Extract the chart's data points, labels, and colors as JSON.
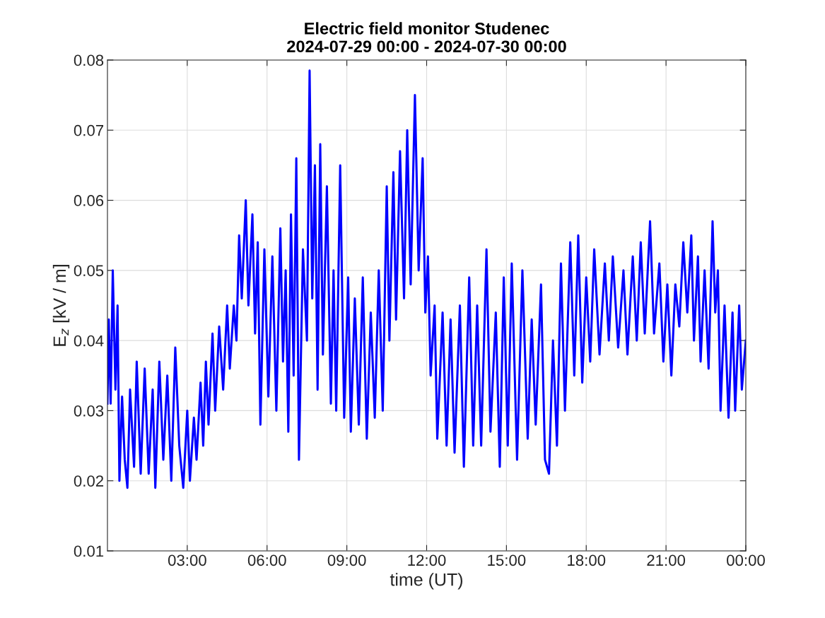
{
  "chart_data": {
    "type": "line",
    "title": "Electric field monitor Studenec\n2024-07-29 00:00 - 2024-07-30 00:00",
    "xlabel": "time (UT)",
    "ylabel": "E$_{z}$ [kV / m]",
    "xlim": [
      0,
      24
    ],
    "xticks": [
      {
        "value": 3,
        "label": "03:00"
      },
      {
        "value": 6,
        "label": "06:00"
      },
      {
        "value": 9,
        "label": "09:00"
      },
      {
        "value": 12,
        "label": "12:00"
      },
      {
        "value": 15,
        "label": "15:00"
      },
      {
        "value": 18,
        "label": "18:00"
      },
      {
        "value": 21,
        "label": "21:00"
      },
      {
        "value": 24,
        "label": "00:00"
      }
    ],
    "ylim": [
      0.01,
      0.08
    ],
    "yticks": [
      0.01,
      0.02,
      0.03,
      0.04,
      0.05,
      0.06,
      0.07,
      0.08
    ],
    "grid": true,
    "legend": false,
    "marker": "none",
    "line_style": "solid",
    "series": [
      {
        "color": "#0000ff",
        "x": [
          0.0,
          0.05,
          0.12,
          0.2,
          0.3,
          0.38,
          0.45,
          0.55,
          0.65,
          0.75,
          0.85,
          1.0,
          1.1,
          1.25,
          1.4,
          1.55,
          1.7,
          1.8,
          1.95,
          2.1,
          2.25,
          2.4,
          2.55,
          2.7,
          2.85,
          3.0,
          3.1,
          3.25,
          3.35,
          3.5,
          3.6,
          3.7,
          3.8,
          3.95,
          4.05,
          4.2,
          4.35,
          4.5,
          4.6,
          4.75,
          4.85,
          4.95,
          5.05,
          5.2,
          5.3,
          5.45,
          5.55,
          5.65,
          5.75,
          5.9,
          6.05,
          6.2,
          6.35,
          6.5,
          6.6,
          6.7,
          6.8,
          6.9,
          7.0,
          7.1,
          7.2,
          7.35,
          7.5,
          7.6,
          7.7,
          7.8,
          7.9,
          8.0,
          8.1,
          8.25,
          8.4,
          8.5,
          8.6,
          8.75,
          8.9,
          9.05,
          9.15,
          9.3,
          9.45,
          9.6,
          9.75,
          9.9,
          10.05,
          10.2,
          10.35,
          10.5,
          10.6,
          10.75,
          10.85,
          11.0,
          11.15,
          11.27,
          11.4,
          11.56,
          11.7,
          11.85,
          11.95,
          12.05,
          12.15,
          12.3,
          12.4,
          12.6,
          12.75,
          12.9,
          13.05,
          13.25,
          13.4,
          13.6,
          13.75,
          13.9,
          14.05,
          14.25,
          14.4,
          14.6,
          14.75,
          14.9,
          15.05,
          15.2,
          15.4,
          15.6,
          15.8,
          15.95,
          16.1,
          16.3,
          16.45,
          16.6,
          16.75,
          16.9,
          17.05,
          17.2,
          17.4,
          17.55,
          17.7,
          17.85,
          18.0,
          18.15,
          18.3,
          18.5,
          18.7,
          18.85,
          19.0,
          19.2,
          19.4,
          19.55,
          19.75,
          19.9,
          20.05,
          20.2,
          20.4,
          20.55,
          20.75,
          20.9,
          21.05,
          21.2,
          21.35,
          21.5,
          21.65,
          21.8,
          21.95,
          22.05,
          22.2,
          22.3,
          22.45,
          22.6,
          22.75,
          22.85,
          22.95,
          23.05,
          23.2,
          23.35,
          23.5,
          23.6,
          23.75,
          23.85,
          24.0
        ],
        "values": [
          0.031,
          0.043,
          0.031,
          0.05,
          0.033,
          0.045,
          0.02,
          0.032,
          0.023,
          0.019,
          0.033,
          0.022,
          0.037,
          0.021,
          0.036,
          0.021,
          0.033,
          0.019,
          0.037,
          0.023,
          0.035,
          0.02,
          0.039,
          0.025,
          0.019,
          0.03,
          0.02,
          0.029,
          0.023,
          0.034,
          0.025,
          0.037,
          0.028,
          0.041,
          0.03,
          0.042,
          0.033,
          0.045,
          0.036,
          0.045,
          0.04,
          0.055,
          0.046,
          0.06,
          0.045,
          0.058,
          0.041,
          0.054,
          0.028,
          0.053,
          0.032,
          0.052,
          0.03,
          0.056,
          0.037,
          0.05,
          0.027,
          0.058,
          0.035,
          0.066,
          0.023,
          0.053,
          0.04,
          0.0785,
          0.046,
          0.065,
          0.033,
          0.068,
          0.038,
          0.062,
          0.031,
          0.05,
          0.03,
          0.065,
          0.029,
          0.049,
          0.027,
          0.046,
          0.028,
          0.049,
          0.026,
          0.044,
          0.029,
          0.05,
          0.03,
          0.062,
          0.04,
          0.064,
          0.043,
          0.067,
          0.046,
          0.07,
          0.048,
          0.075,
          0.05,
          0.066,
          0.044,
          0.052,
          0.035,
          0.045,
          0.026,
          0.044,
          0.025,
          0.043,
          0.024,
          0.045,
          0.022,
          0.049,
          0.025,
          0.045,
          0.025,
          0.053,
          0.027,
          0.044,
          0.022,
          0.049,
          0.025,
          0.051,
          0.023,
          0.05,
          0.026,
          0.043,
          0.028,
          0.048,
          0.023,
          0.021,
          0.04,
          0.025,
          0.051,
          0.03,
          0.054,
          0.035,
          0.055,
          0.034,
          0.049,
          0.037,
          0.053,
          0.038,
          0.051,
          0.04,
          0.052,
          0.039,
          0.05,
          0.038,
          0.052,
          0.04,
          0.054,
          0.041,
          0.057,
          0.041,
          0.051,
          0.037,
          0.048,
          0.035,
          0.048,
          0.042,
          0.054,
          0.044,
          0.055,
          0.04,
          0.052,
          0.037,
          0.05,
          0.036,
          0.057,
          0.044,
          0.05,
          0.03,
          0.045,
          0.029,
          0.044,
          0.03,
          0.045,
          0.033,
          0.04
        ]
      }
    ]
  }
}
